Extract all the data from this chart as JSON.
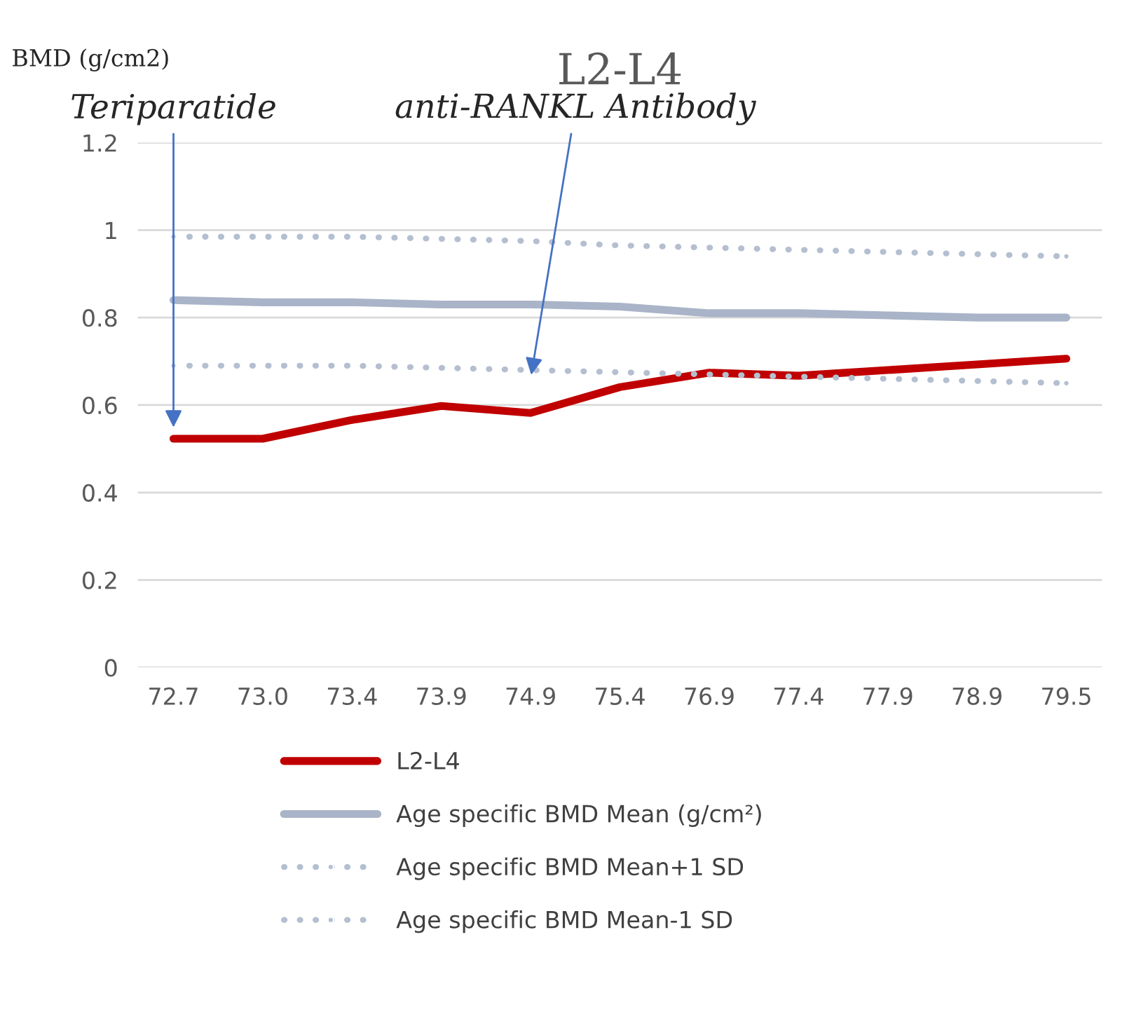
{
  "chart_data": {
    "type": "line",
    "title": "L2-L4",
    "ylabel": "BMD (g/cm2)",
    "categories": [
      "72.7",
      "73.0",
      "73.4",
      "73.9",
      "74.9",
      "75.4",
      "76.9",
      "77.4",
      "77.9",
      "78.9",
      "79.5"
    ],
    "series": [
      {
        "name": "L2-L4",
        "color": "#c00000",
        "line_style": "solid",
        "values": [
          0.523,
          0.523,
          0.566,
          0.598,
          0.582,
          0.641,
          0.674,
          0.667,
          0.68,
          0.693,
          0.706
        ]
      },
      {
        "name": "Age specific BMD Mean (g/cm²)",
        "color": "#a9b4c8",
        "line_style": "solid",
        "values": [
          0.84,
          0.835,
          0.835,
          0.83,
          0.83,
          0.825,
          0.81,
          0.81,
          0.805,
          0.8,
          0.8
        ]
      },
      {
        "name": "Age specific BMD Mean+1 SD",
        "color": "#b4bfd0",
        "line_style": "dotted",
        "values": [
          0.985,
          0.985,
          0.985,
          0.98,
          0.975,
          0.965,
          0.96,
          0.955,
          0.95,
          0.945,
          0.94
        ]
      },
      {
        "name": "Age specific BMD Mean-1 SD",
        "color": "#b4bfd0",
        "line_style": "dotted",
        "values": [
          0.69,
          0.69,
          0.69,
          0.685,
          0.68,
          0.675,
          0.67,
          0.665,
          0.66,
          0.655,
          0.65
        ]
      }
    ],
    "annotations": [
      {
        "text": "Teriparatide",
        "x": "72.7",
        "y": 0.54
      },
      {
        "text": "anti-RANKL Antibody",
        "x": "74.9",
        "y": 0.66
      }
    ],
    "ylim": [
      0,
      1.2
    ],
    "yticks": [
      0,
      0.2,
      0.4,
      0.6,
      0.8,
      1,
      1.2
    ],
    "grid": "y",
    "legend": "bottom",
    "marker": "none"
  }
}
